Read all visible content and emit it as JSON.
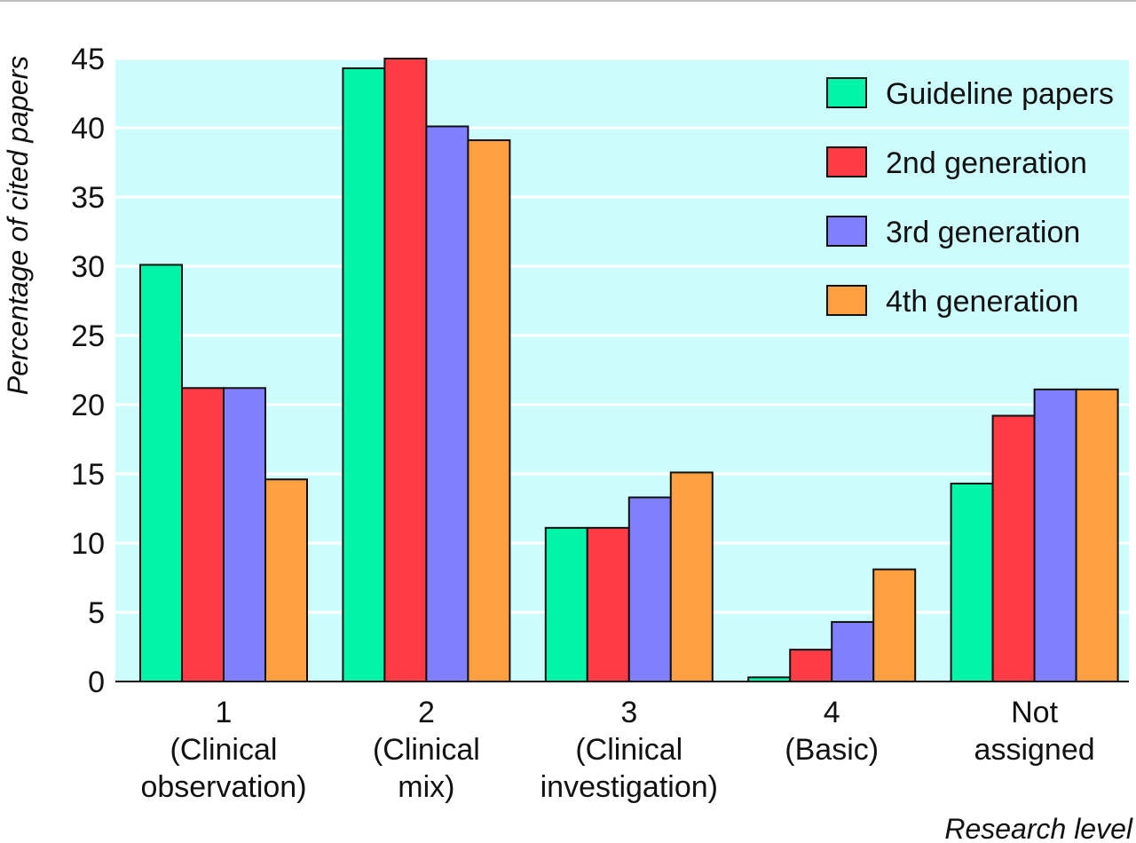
{
  "colors": {
    "plot_background": "#ccfcfc",
    "gridline": "#ffffff",
    "series": [
      "#00f5a8",
      "#ff3c46",
      "#8080ff",
      "#ffa040"
    ]
  },
  "chart_data": {
    "type": "bar",
    "title": "",
    "xlabel": "Research level",
    "ylabel": "Percentage of cited papers",
    "ylim": [
      0,
      45
    ],
    "yticks": [
      0,
      5,
      10,
      15,
      20,
      25,
      30,
      35,
      40,
      45
    ],
    "grid": "horizontal",
    "legend_position": "top-right",
    "categories": [
      [
        "1",
        "(Clinical",
        "observation)"
      ],
      [
        "2",
        "(Clinical",
        "mix)"
      ],
      [
        "3",
        "(Clinical",
        "investigation)"
      ],
      [
        "4",
        "(Basic)"
      ],
      [
        "Not",
        "assigned"
      ]
    ],
    "series": [
      {
        "name": "Guideline papers",
        "values": [
          30.1,
          44.3,
          11.1,
          0.3,
          14.3
        ]
      },
      {
        "name": "2nd generation",
        "values": [
          21.2,
          45.0,
          11.1,
          2.3,
          19.2
        ]
      },
      {
        "name": "3rd generation",
        "values": [
          21.2,
          40.1,
          13.3,
          4.3,
          21.1
        ]
      },
      {
        "name": "4th generation",
        "values": [
          14.6,
          39.1,
          15.1,
          8.1,
          21.1
        ]
      }
    ]
  }
}
